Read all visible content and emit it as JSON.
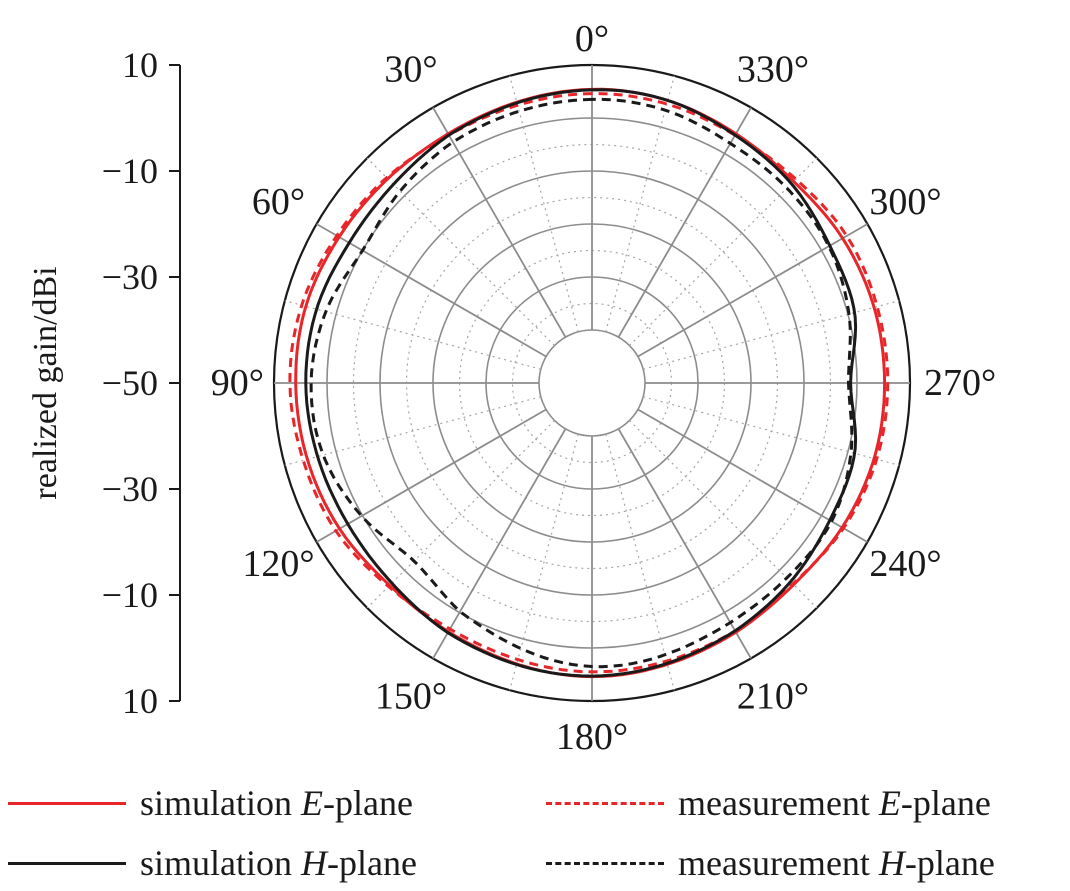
{
  "chart_data": {
    "type": "polar-line",
    "radial_axis": {
      "label": "realized gain/dBi",
      "range": [
        -50,
        10
      ],
      "ticks": [
        10,
        -10,
        -30,
        -50,
        -30,
        -10,
        10
      ],
      "grid_circles": [
        -40,
        -30,
        -20,
        -10,
        0
      ]
    },
    "angular_axis": {
      "direction": "counterclockwise",
      "zero_at": "top",
      "tick_labels": [
        "0°",
        "30°",
        "60°",
        "90°",
        "120°",
        "150°",
        "180°",
        "210°",
        "240°",
        "270°",
        "300°",
        "330°"
      ]
    },
    "series": [
      {
        "name": "simulation E-plane",
        "color": "#e8262a",
        "dash": "solid",
        "angles": [
          0,
          30,
          45,
          60,
          75,
          90,
          105,
          120,
          135,
          150,
          180,
          210,
          225,
          240,
          255,
          270,
          285,
          300,
          315,
          330,
          345
        ],
        "values": [
          5.4,
          4.3,
          4.5,
          5.1,
          5.9,
          5.9,
          5.6,
          5.0,
          4.0,
          4.2,
          5.4,
          4.3,
          3.8,
          4.5,
          5.1,
          5.2,
          5.1,
          4.6,
          3.8,
          4.3,
          5.2
        ]
      },
      {
        "name": "measurement E-plane",
        "color": "#e8262a",
        "dash": "dashed",
        "angles": [
          0,
          30,
          45,
          60,
          75,
          90,
          105,
          120,
          135,
          150,
          180,
          210,
          225,
          240,
          255,
          270,
          285,
          300,
          315,
          330,
          345
        ],
        "values": [
          4.6,
          4.0,
          4.8,
          5.6,
          6.7,
          7.0,
          6.4,
          5.8,
          4.3,
          3.6,
          4.5,
          4.0,
          3.6,
          4.8,
          5.6,
          5.8,
          5.7,
          5.5,
          4.4,
          4.0,
          4.5
        ]
      },
      {
        "name": "simulation H-plane",
        "color": "#1a1a1a",
        "dash": "solid",
        "angles": [
          0,
          30,
          45,
          60,
          75,
          90,
          105,
          120,
          135,
          150,
          180,
          210,
          225,
          240,
          255,
          270,
          285,
          300,
          315,
          330,
          345
        ],
        "values": [
          5.3,
          4.0,
          3.0,
          2.9,
          3.8,
          4.0,
          3.6,
          3.2,
          3.4,
          4.4,
          5.3,
          4.0,
          3.0,
          1.8,
          1.3,
          -1.2,
          1.3,
          1.8,
          3.2,
          4.0,
          5.2
        ]
      },
      {
        "name": "measurement H-plane",
        "color": "#1a1a1a",
        "dash": "dashed",
        "angles": [
          0,
          30,
          45,
          60,
          75,
          90,
          105,
          120,
          135,
          150,
          180,
          210,
          225,
          240,
          255,
          270,
          285,
          300,
          315,
          330,
          345
        ],
        "values": [
          3.5,
          2.5,
          1.2,
          0.0,
          2.0,
          3.0,
          2.5,
          0.2,
          -2.5,
          -0.2,
          3.5,
          2.2,
          2.0,
          2.2,
          0.6,
          -1.6,
          0.2,
          1.6,
          2.0,
          2.2,
          3.3
        ]
      }
    ],
    "legend": {
      "position": "bottom",
      "items": [
        {
          "prefix": "simulation ",
          "italic": "E",
          "suffix": "-plane"
        },
        {
          "prefix": "measurement ",
          "italic": "E",
          "suffix": "-plane"
        },
        {
          "prefix": "simulation ",
          "italic": "H",
          "suffix": "-plane"
        },
        {
          "prefix": "measurement ",
          "italic": "H",
          "suffix": "-plane"
        }
      ]
    }
  }
}
